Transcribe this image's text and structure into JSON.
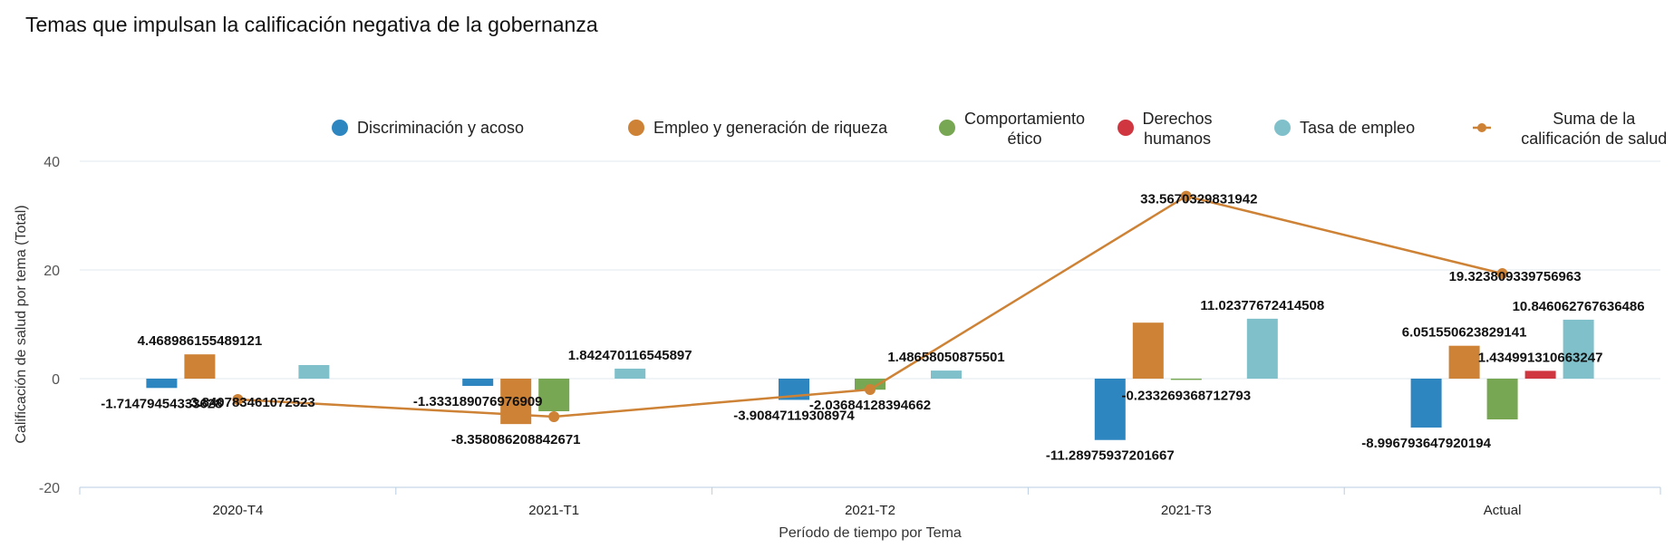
{
  "chart_data": {
    "type": "bar",
    "title": "Temas que impulsan la calificación negativa de la gobernanza",
    "xlabel": "Período de tiempo por Tema",
    "ylabel": "Calificación de salud por tema (Total)",
    "ylim": [
      -20,
      40
    ],
    "yticks": [
      -20,
      0,
      20,
      40
    ],
    "grid": true,
    "legend_position": "top",
    "categories": [
      "2020-T4",
      "2021-T1",
      "2021-T2",
      "2021-T3",
      "Actual"
    ],
    "series": [
      {
        "name": "Discriminación y acoso",
        "color": "#2e86c1",
        "kind": "bar",
        "values": [
          -1.71479454333628,
          -1.333189076976909,
          -3.90847119308974,
          -11.28975937201667,
          -8.996793647920194
        ],
        "labels": [
          "-1.71479454333628",
          "-1.333189076976909",
          "-3.90847119308974",
          "-11.28975937201667",
          "-8.996793647920194"
        ]
      },
      {
        "name": "Empleo y generación de riqueza",
        "color": "#cd8235",
        "kind": "bar",
        "values": [
          4.468986155489121,
          -8.358086208842671,
          null,
          10.3,
          6.051550623829141
        ],
        "labels": [
          "4.468986155489121",
          "-8.358086208842671",
          null,
          null,
          "6.051550623829141"
        ]
      },
      {
        "name": "Comportamiento ético",
        "color": "#77a752",
        "kind": "bar",
        "values": [
          null,
          -6.0,
          -2.03684128394662,
          -0.233269368712793,
          -7.5
        ],
        "labels": [
          null,
          null,
          "-2.03684128394662",
          "-0.233269368712793",
          null
        ]
      },
      {
        "name": "Derechos humanos",
        "color": "#d0363f",
        "kind": "bar",
        "values": [
          null,
          null,
          null,
          null,
          1.434991310663247
        ],
        "labels": [
          null,
          null,
          null,
          null,
          "1.434991310663247"
        ]
      },
      {
        "name": "Tasa de empleo",
        "color": "#7fc0cb",
        "kind": "bar",
        "values": [
          2.5,
          1.842470116545897,
          1.48658050875501,
          11.02377672414508,
          10.846062767636486
        ],
        "labels": [
          null,
          "1.842470116545897",
          "1.48658050875501",
          "11.02377672414508",
          "10.846062767636486"
        ]
      },
      {
        "name": "Suma de la calificación de salud",
        "color": "#cd8235",
        "kind": "line",
        "values": [
          -3.840783461072523,
          -7.0,
          -2.0,
          33.5670329831942,
          19.323809339756963
        ],
        "labels": [
          "-3.840783461072523",
          null,
          null,
          "33.5670329831942",
          "19.323809339756963"
        ]
      }
    ]
  }
}
